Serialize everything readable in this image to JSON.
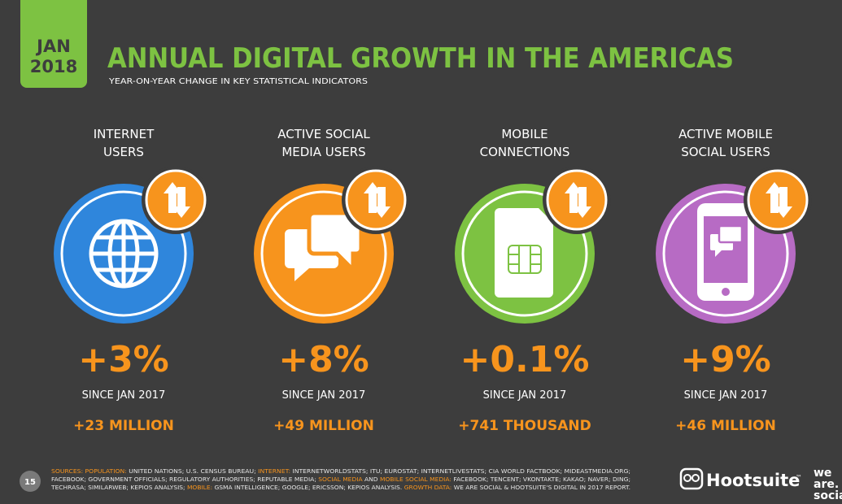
{
  "header": {
    "date_line1": "JAN",
    "date_line2": "2018",
    "title": "ANNUAL DIGITAL GROWTH IN THE AMERICAS",
    "subtitle": "YEAR-ON-YEAR CHANGE IN KEY STATISTICAL INDICATORS"
  },
  "indicators": [
    {
      "label": [
        "INTERNET",
        "USERS"
      ],
      "value": "+3%",
      "since": "SINCE JAN 2017",
      "absolute": "+23 MILLION",
      "color": "#2f86dc"
    },
    {
      "label": [
        "ACTIVE SOCIAL",
        "MEDIA USERS"
      ],
      "value": "+8%",
      "since": "SINCE JAN 2017",
      "absolute": "+49 MILLION",
      "color": "#f7941d"
    },
    {
      "label": [
        "MOBILE",
        "CONNECTIONS"
      ],
      "value": "+0.1%",
      "since": "SINCE JAN 2017",
      "absolute": "+741 THOUSAND",
      "color": "#7dc242"
    },
    {
      "label": [
        "ACTIVE MOBILE",
        "SOCIAL USERS"
      ],
      "value": "+9%",
      "since": "SINCE JAN 2017",
      "absolute": "+46 MILLION",
      "color": "#b76bc4"
    }
  ],
  "footer": {
    "page": "15",
    "sources": [
      [
        {
          "text": "SOURCES:",
          "highlight": true
        },
        {
          "text": " ",
          "highlight": false
        },
        {
          "text": "POPULATION:",
          "highlight": true
        },
        {
          "text": " UNITED NATIONS; U.S. CENSUS BUREAU; ",
          "highlight": false
        },
        {
          "text": "INTERNET:",
          "highlight": true
        },
        {
          "text": " INTERNETWORLDSTATS; ITU; EUROSTAT; INTERNETLIVESTATS; CIA WORLD FACTBOOK; MIDEASTMEDIA.ORG;",
          "highlight": false
        }
      ],
      [
        {
          "text": "FACEBOOK; GOVERNMENT OFFICIALS; REGULATORY AUTHORITIES; REPUTABLE MEDIA; ",
          "highlight": false
        },
        {
          "text": "SOCIAL MEDIA",
          "highlight": true
        },
        {
          "text": " AND ",
          "highlight": false
        },
        {
          "text": "MOBILE SOCIAL MEDIA:",
          "highlight": true
        },
        {
          "text": " FACEBOOK; TENCENT; VKONTAKTE; KAKAO; NAVER; DING;",
          "highlight": false
        }
      ],
      [
        {
          "text": "TECHRASA; SIMILARWEB; KEPIOS ANALYSIS; ",
          "highlight": false
        },
        {
          "text": "MOBILE:",
          "highlight": true
        },
        {
          "text": " GSMA INTELLIGENCE; GOOGLE; ERICSSON; KEPIOS ANALYSIS. ",
          "highlight": false
        },
        {
          "text": "GROWTH DATA:",
          "highlight": true
        },
        {
          "text": " WE ARE SOCIAL & HOOTSUITE'S DIGITAL IN 2017 REPORT.",
          "highlight": false
        }
      ]
    ],
    "logo_hootsuite": "Hootsuite",
    "logo_tm": "™",
    "logo_social": [
      "we",
      "are.",
      "social"
    ]
  }
}
